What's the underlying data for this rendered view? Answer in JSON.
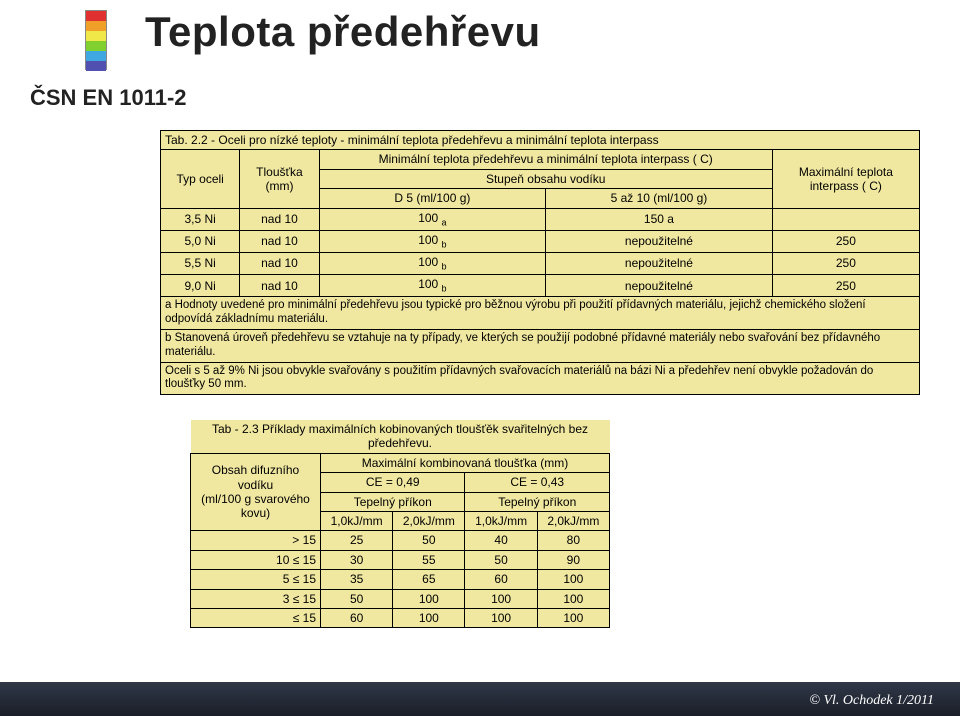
{
  "title": "Teplota předehřevu",
  "subtitle": "ČSN EN 1011-2",
  "color_strip": [
    "#e03030",
    "#f0a028",
    "#f0e848",
    "#80d030",
    "#40a8e0",
    "#5050b0"
  ],
  "table22": {
    "caption": "Tab. 2.2 - Oceli pro nízké teploty - minimální teplota předehřevu a minimální teplota interpass",
    "col_head_type": "Typ oceli",
    "col_head_thick": "Tloušťka (mm)",
    "col_head_min_span": "Minimální teplota předehřevu a minimální teplota interpass ( C)",
    "col_head_hydro": "Stupeň obsahu vodíku",
    "col_head_d5": "D 5 (ml/100 g)",
    "col_head_5_10": "5 až 10 (ml/100 g)",
    "col_head_max": "Maximální teplota interpass ( C)",
    "rows": [
      {
        "type": "3,5 Ni",
        "thick": "nad 10",
        "d5": "100",
        "d5sub": "a",
        "r2": "150 a",
        "max": ""
      },
      {
        "type": "5,0 Ni",
        "thick": "nad 10",
        "d5": "100",
        "d5sub": "b",
        "r2": "nepoužitelné",
        "max": "250"
      },
      {
        "type": "5,5 Ni",
        "thick": "nad 10",
        "d5": "100",
        "d5sub": "b",
        "r2": "nepoužitelné",
        "max": "250"
      },
      {
        "type": "9,0 Ni",
        "thick": "nad 10",
        "d5": "100",
        "d5sub": "b",
        "r2": "nepoužitelné",
        "max": "250"
      }
    ],
    "note_a": "a Hodnoty uvedené pro minimální předehřevu jsou typické pro běžnou výrobu při použití přídavných materiálu, jejichž chemického složení odpovídá základnímu materiálu.",
    "note_b": "b Stanovená úroveň předehřevu se vztahuje na ty případy, ve kterých se použijí podobné přídavné materiály nebo svařování bez přídavného materiálu.",
    "note_c": "Oceli s 5 až 9% Ni jsou obvykle svařovány s použitím přídavných svařovacích materiálů na bázi Ni a předehřev není obvykle požadován do tloušťky 50 mm."
  },
  "table23": {
    "caption": "Tab - 2.3 Příklady maximálních kobinovaných tloušťěk svařitelných bez předehřevu.",
    "col_head_diff": "Obsah difuzního vodíku\n(ml/100 g svarového kovu)",
    "col_head_maxspan": "Maximální kombinovaná tloušťka (mm)",
    "col_ce1": "CE = 0,49",
    "col_ce2": "CE = 0,43",
    "col_hr": "Tepelný příkon",
    "sub_10": "1,0kJ/mm",
    "sub_20": "2,0kJ/mm",
    "rows": [
      {
        "h": "> 15",
        "v": [
          "25",
          "50",
          "40",
          "80"
        ]
      },
      {
        "h": "10 ≤ 15",
        "v": [
          "30",
          "55",
          "50",
          "90"
        ]
      },
      {
        "h": "5 ≤ 15",
        "v": [
          "35",
          "65",
          "60",
          "100"
        ]
      },
      {
        "h": "3 ≤ 15",
        "v": [
          "50",
          "100",
          "100",
          "100"
        ]
      },
      {
        "h": "≤ 15",
        "v": [
          "60",
          "100",
          "100",
          "100"
        ]
      }
    ]
  },
  "footer": "© Vl. Ochodek  1/2011",
  "style": {
    "page_bg": "#ffffff",
    "table_bg": "#f0e8a0",
    "border_color": "#000000",
    "title_fontsize": 42,
    "subtitle_fontsize": 22,
    "table_fontsize": 12,
    "footer_bg_top": "#303848",
    "footer_bg_bot": "#1a1e28",
    "footer_color": "#ffffff"
  }
}
